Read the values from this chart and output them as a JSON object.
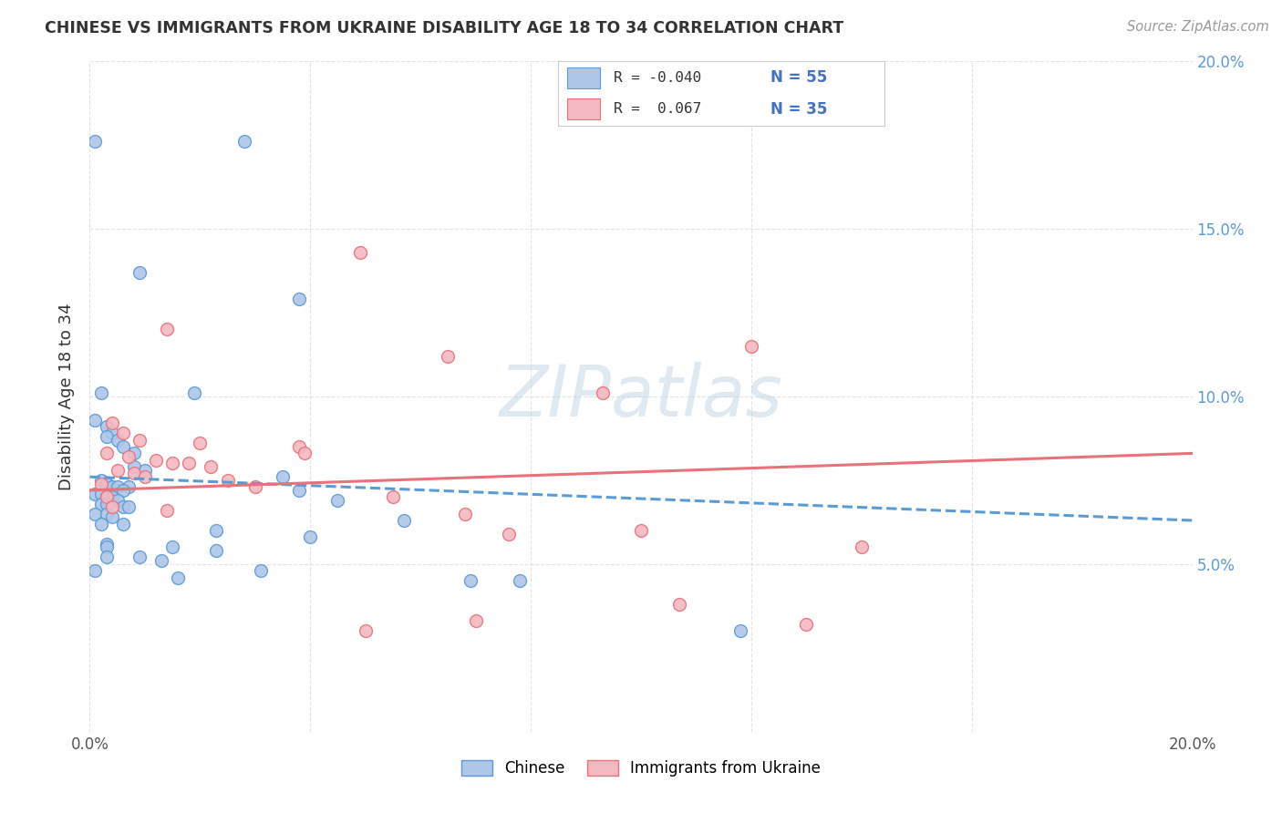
{
  "title": "CHINESE VS IMMIGRANTS FROM UKRAINE DISABILITY AGE 18 TO 34 CORRELATION CHART",
  "source": "Source: ZipAtlas.com",
  "ylabel": "Disability Age 18 to 34",
  "watermark": "ZIPatlas",
  "xlim": [
    0.0,
    0.2
  ],
  "ylim": [
    0.0,
    0.2
  ],
  "scatter_blue": "#aec6e8",
  "scatter_blue_edge": "#5b9bd5",
  "scatter_pink": "#f4b8c1",
  "scatter_pink_edge": "#e8717a",
  "scatter_size": 100,
  "grid_color": "#dddddd",
  "background_color": "#ffffff",
  "right_ytick_color": "#5b9bd5",
  "chinese_line_x0": 0.0,
  "chinese_line_y0": 0.076,
  "chinese_line_x1": 0.2,
  "chinese_line_y1": 0.063,
  "ukraine_line_x0": 0.0,
  "ukraine_line_y0": 0.072,
  "ukraine_line_x1": 0.2,
  "ukraine_line_y1": 0.083,
  "chinese_scatter": [
    [
      0.001,
      0.176
    ],
    [
      0.028,
      0.176
    ],
    [
      0.009,
      0.137
    ],
    [
      0.038,
      0.129
    ],
    [
      0.002,
      0.101
    ],
    [
      0.019,
      0.101
    ],
    [
      0.001,
      0.093
    ],
    [
      0.003,
      0.091
    ],
    [
      0.004,
      0.089
    ],
    [
      0.003,
      0.088
    ],
    [
      0.005,
      0.087
    ],
    [
      0.006,
      0.085
    ],
    [
      0.008,
      0.083
    ],
    [
      0.008,
      0.079
    ],
    [
      0.01,
      0.078
    ],
    [
      0.035,
      0.076
    ],
    [
      0.002,
      0.075
    ],
    [
      0.003,
      0.074
    ],
    [
      0.003,
      0.074
    ],
    [
      0.004,
      0.073
    ],
    [
      0.005,
      0.073
    ],
    [
      0.007,
      0.073
    ],
    [
      0.006,
      0.072
    ],
    [
      0.038,
      0.072
    ],
    [
      0.001,
      0.071
    ],
    [
      0.002,
      0.071
    ],
    [
      0.003,
      0.07
    ],
    [
      0.004,
      0.07
    ],
    [
      0.005,
      0.069
    ],
    [
      0.045,
      0.069
    ],
    [
      0.002,
      0.068
    ],
    [
      0.003,
      0.068
    ],
    [
      0.006,
      0.067
    ],
    [
      0.007,
      0.067
    ],
    [
      0.001,
      0.065
    ],
    [
      0.003,
      0.065
    ],
    [
      0.004,
      0.064
    ],
    [
      0.057,
      0.063
    ],
    [
      0.002,
      0.062
    ],
    [
      0.006,
      0.062
    ],
    [
      0.023,
      0.06
    ],
    [
      0.04,
      0.058
    ],
    [
      0.003,
      0.056
    ],
    [
      0.003,
      0.055
    ],
    [
      0.015,
      0.055
    ],
    [
      0.023,
      0.054
    ],
    [
      0.003,
      0.052
    ],
    [
      0.009,
      0.052
    ],
    [
      0.013,
      0.051
    ],
    [
      0.001,
      0.048
    ],
    [
      0.031,
      0.048
    ],
    [
      0.016,
      0.046
    ],
    [
      0.069,
      0.045
    ],
    [
      0.078,
      0.045
    ],
    [
      0.118,
      0.03
    ]
  ],
  "ukraine_scatter": [
    [
      0.049,
      0.143
    ],
    [
      0.014,
      0.12
    ],
    [
      0.065,
      0.112
    ],
    [
      0.093,
      0.101
    ],
    [
      0.004,
      0.092
    ],
    [
      0.006,
      0.089
    ],
    [
      0.009,
      0.087
    ],
    [
      0.02,
      0.086
    ],
    [
      0.003,
      0.083
    ],
    [
      0.007,
      0.082
    ],
    [
      0.012,
      0.081
    ],
    [
      0.015,
      0.08
    ],
    [
      0.018,
      0.08
    ],
    [
      0.022,
      0.079
    ],
    [
      0.038,
      0.085
    ],
    [
      0.039,
      0.083
    ],
    [
      0.005,
      0.078
    ],
    [
      0.008,
      0.077
    ],
    [
      0.01,
      0.076
    ],
    [
      0.025,
      0.075
    ],
    [
      0.002,
      0.074
    ],
    [
      0.03,
      0.073
    ],
    [
      0.003,
      0.07
    ],
    [
      0.055,
      0.07
    ],
    [
      0.004,
      0.067
    ],
    [
      0.014,
      0.066
    ],
    [
      0.068,
      0.065
    ],
    [
      0.1,
      0.06
    ],
    [
      0.076,
      0.059
    ],
    [
      0.14,
      0.055
    ],
    [
      0.107,
      0.038
    ],
    [
      0.07,
      0.033
    ],
    [
      0.13,
      0.032
    ],
    [
      0.05,
      0.03
    ],
    [
      0.12,
      0.115
    ]
  ]
}
